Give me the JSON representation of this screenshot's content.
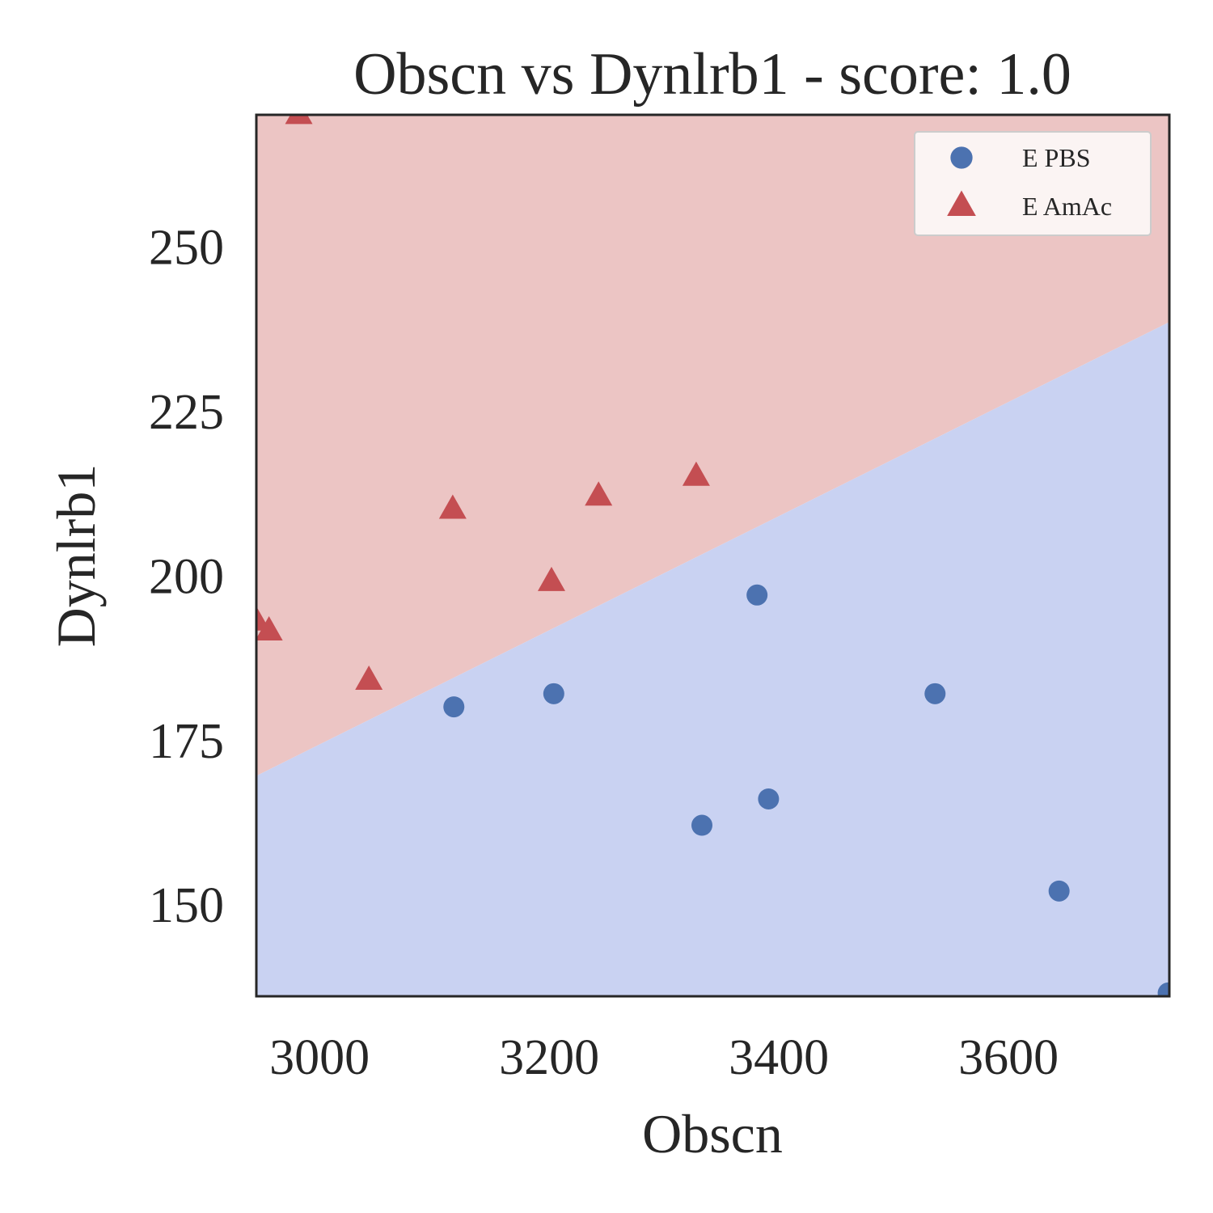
{
  "chart_data": {
    "type": "scatter",
    "title": "Obscn vs Dynlrb1 - score: 1.0",
    "xlabel": "Obscn",
    "ylabel": "Dynlrb1",
    "xlim": [
      2945,
      3740
    ],
    "ylim": [
      136,
      270
    ],
    "xticks": [
      3000,
      3200,
      3400,
      3600
    ],
    "yticks": [
      150,
      175,
      200,
      225,
      250
    ],
    "grid": false,
    "legend_position": "top-right",
    "decision_boundary": {
      "x": [
        2945,
        3740
      ],
      "y": [
        169.5,
        238.5
      ]
    },
    "regions": [
      {
        "class": "E AmAc",
        "side": "above",
        "color": "#ecc5c4"
      },
      {
        "class": "E PBS",
        "side": "below",
        "color": "#c9d2f2"
      }
    ],
    "series": [
      {
        "name": "E PBS",
        "marker": "circle",
        "color": "#4c72b0",
        "points": [
          {
            "x": 3117,
            "y": 180
          },
          {
            "x": 3204,
            "y": 182
          },
          {
            "x": 3333,
            "y": 162
          },
          {
            "x": 3381,
            "y": 197
          },
          {
            "x": 3391,
            "y": 166
          },
          {
            "x": 3536,
            "y": 182
          },
          {
            "x": 3644,
            "y": 152
          },
          {
            "x": 3739,
            "y": 136.5
          }
        ]
      },
      {
        "name": "E AmAc",
        "marker": "triangle",
        "color": "#c44e52",
        "points": [
          {
            "x": 2945,
            "y": 193
          },
          {
            "x": 2956,
            "y": 191.5
          },
          {
            "x": 2982,
            "y": 270
          },
          {
            "x": 3043,
            "y": 184
          },
          {
            "x": 3116,
            "y": 210
          },
          {
            "x": 3202,
            "y": 199
          },
          {
            "x": 3243,
            "y": 212
          },
          {
            "x": 3328,
            "y": 215
          }
        ]
      }
    ]
  }
}
